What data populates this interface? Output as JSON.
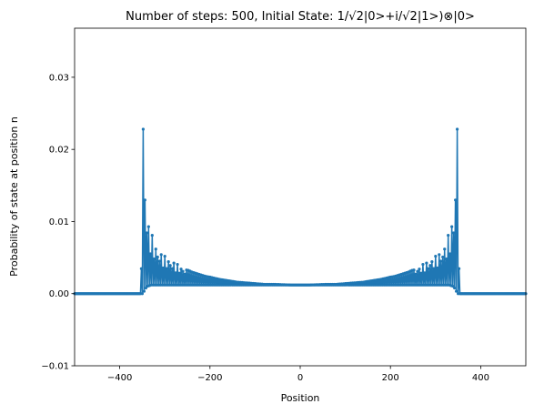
{
  "chart_data": {
    "type": "line",
    "title": "Number of steps: 500, Initial State: 1/√2|0>+i/√2|1>)⊗|0>",
    "xlabel": "Position",
    "ylabel": "Probability of state at position n",
    "xlim": [
      -500,
      500
    ],
    "ylim": [
      -0.01,
      0.0368
    ],
    "xticks": [
      -400,
      -200,
      0,
      200,
      400
    ],
    "xtick_labels": [
      "−400",
      "−200",
      "0",
      "200",
      "400"
    ],
    "yticks": [
      -0.01,
      0.0,
      0.01,
      0.02,
      0.03
    ],
    "ytick_labels": [
      "−0.01",
      "0.00",
      "0.01",
      "0.02",
      "0.03"
    ],
    "grid": false,
    "series_color": "#1f77b4",
    "marker": "dot",
    "steps": 500,
    "envelope_max": {
      "x": [
        -356,
        -352,
        -349,
        -346,
        -343,
        -340,
        -335,
        -330,
        -325,
        -318,
        -310,
        -300,
        -290,
        -280,
        -270,
        -260,
        -250,
        -240,
        -230,
        -220,
        -210,
        -200,
        -180,
        -160,
        -140,
        -120,
        -100,
        -80,
        -60,
        -40,
        -20,
        0
      ],
      "y": [
        0.0,
        0.006,
        0.0268,
        0.022,
        0.015,
        0.0115,
        0.0095,
        0.0085,
        0.0075,
        0.0065,
        0.0058,
        0.0052,
        0.0048,
        0.0044,
        0.004,
        0.0036,
        0.0033,
        0.003,
        0.0028,
        0.0026,
        0.0024,
        0.0023,
        0.002,
        0.0018,
        0.0016,
        0.0015,
        0.0014,
        0.0013,
        0.0013,
        0.00125,
        0.0012,
        0.0012
      ]
    },
    "envelope_min": {
      "x": [
        -356,
        -349,
        -340,
        -330,
        -320,
        -310,
        -300,
        -280,
        -260,
        -240,
        -220,
        -200,
        -180,
        -160,
        -140,
        -120,
        -100,
        -80,
        -60,
        -40,
        -20,
        0
      ],
      "y": [
        0.0,
        0.0,
        0.001,
        0.0012,
        0.0012,
        0.0012,
        0.0012,
        0.0012,
        0.0012,
        0.0012,
        0.0012,
        0.0012,
        0.0012,
        0.0012,
        0.0012,
        0.0012,
        0.0012,
        0.0012,
        0.0012,
        0.0012,
        0.0012,
        0.0012
      ]
    }
  }
}
